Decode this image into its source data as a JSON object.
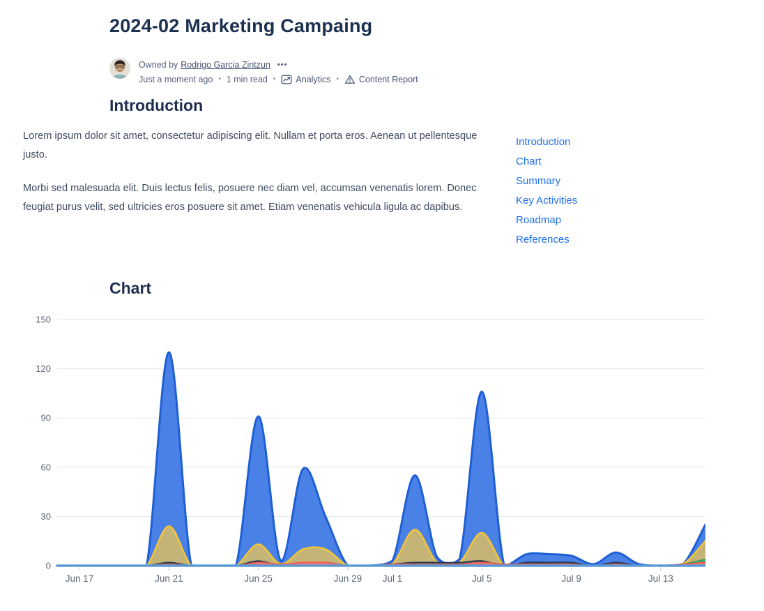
{
  "page": {
    "title": "2024-02 Marketing Campaing",
    "byline": {
      "owned_by": "Owned by",
      "owner_name": "Rodrigo Garcia Zintzun",
      "more": "•••",
      "updated": "Just a moment ago",
      "read_time": "1 min read",
      "dot": "•",
      "analytics": "Analytics",
      "content_report": "Content Report"
    },
    "intro": {
      "heading": "Introduction",
      "p1": "Lorem ipsum dolor sit amet, consectetur adipiscing elit. Nullam et porta eros. Aenean ut pellentesque justo.",
      "p2": "Morbi sed malesuada elit. Duis lectus felis, posuere nec diam vel, accumsan venenatis lorem. Donec feugiat purus velit, sed ultricies eros posuere sit amet. Etiam venenatis vehicula ligula ac dapibus."
    },
    "toc": {
      "items": [
        {
          "label": "Introduction"
        },
        {
          "label": "Chart"
        },
        {
          "label": "Summary"
        },
        {
          "label": "Key Activities"
        },
        {
          "label": "Roadmap"
        },
        {
          "label": "References"
        }
      ]
    },
    "chart_heading": "Chart"
  },
  "chart_data": {
    "type": "area",
    "title": "Chart",
    "legend": "none",
    "grid": true,
    "ylim": [
      0,
      150
    ],
    "yticks": [
      0,
      30,
      60,
      90,
      120,
      150
    ],
    "xticks": [
      "Jun 17",
      "Jun 21",
      "Jun 25",
      "Jun 29",
      "Jul 1",
      "Jul 5",
      "Jul 9",
      "Jul 13"
    ],
    "x": [
      "Jun 16",
      "Jun 17",
      "Jun 18",
      "Jun 19",
      "Jun 20",
      "Jun 21",
      "Jun 22",
      "Jun 23",
      "Jun 24",
      "Jun 25",
      "Jun 26",
      "Jun 27",
      "Jun 28",
      "Jun 29",
      "Jun 30",
      "Jul 1",
      "Jul 2",
      "Jul 3",
      "Jul 4",
      "Jul 5",
      "Jul 6",
      "Jul 7",
      "Jul 8",
      "Jul 9",
      "Jul 10",
      "Jul 11",
      "Jul 12",
      "Jul 13",
      "Jul 14",
      "Jul 15"
    ],
    "series": [
      {
        "name": "series-blue",
        "kind": "area",
        "line": "#1e5fd6",
        "fill": "#4a81e6",
        "width": 3,
        "values": [
          0,
          0,
          0,
          0,
          0,
          130,
          0,
          0,
          0,
          91,
          3,
          59,
          30,
          0,
          0,
          3,
          55,
          5,
          4,
          106,
          0,
          7,
          7,
          6,
          1,
          8,
          1,
          0,
          1,
          25
        ]
      },
      {
        "name": "series-yellow",
        "kind": "area",
        "line": "#f5c634",
        "fill": "#c5b477",
        "width": 2.5,
        "values": [
          0,
          0,
          0,
          0,
          0,
          24,
          0,
          0,
          0,
          13,
          1,
          10,
          10,
          0,
          0,
          1,
          22,
          2,
          2,
          20,
          0,
          1,
          1,
          1,
          0,
          1,
          0,
          0,
          1,
          15
        ]
      },
      {
        "name": "series-navy",
        "kind": "area",
        "line": "#253750",
        "fill": "#324763",
        "width": 1.5,
        "values": [
          0,
          0,
          0,
          0,
          0,
          2,
          0,
          0,
          0,
          3,
          0,
          1,
          2,
          0,
          0,
          1,
          2,
          2,
          2,
          3,
          0,
          2,
          2,
          2,
          0,
          2,
          0,
          0,
          0,
          2
        ]
      },
      {
        "name": "series-green",
        "kind": "area",
        "line": "#2e9e50",
        "fill": "#46aa62",
        "width": 1.5,
        "values": [
          0,
          0,
          0,
          0,
          0,
          1,
          0,
          0,
          0,
          1,
          0,
          1,
          2,
          0,
          0,
          0,
          1,
          1,
          1,
          2,
          1,
          0,
          1,
          1,
          0,
          0,
          0,
          0,
          1,
          4
        ]
      },
      {
        "name": "series-red",
        "kind": "area",
        "line": "#ee5a52",
        "fill": "#f4756e",
        "width": 1.5,
        "values": [
          0,
          0,
          0,
          0,
          0,
          1,
          0,
          0,
          0,
          2,
          1,
          2,
          2,
          0,
          0,
          1,
          1,
          1,
          1,
          2,
          1,
          1,
          1,
          1,
          0,
          1,
          0,
          0,
          1,
          2
        ]
      },
      {
        "name": "series-steelblue-baseline",
        "kind": "line",
        "line": "#5b9bd5",
        "fill": "none",
        "width": 3.5,
        "values": [
          0,
          0,
          0,
          0,
          0,
          0,
          0,
          0,
          0,
          0,
          0,
          0,
          0,
          0,
          0,
          0,
          0,
          0,
          0,
          0,
          0,
          0,
          0,
          0,
          0,
          0,
          0,
          0,
          0,
          0
        ]
      }
    ],
    "axis_colors": {
      "grid": "#e6e7e9",
      "tick": "#c6c9ce",
      "label": "#5a6472"
    }
  }
}
